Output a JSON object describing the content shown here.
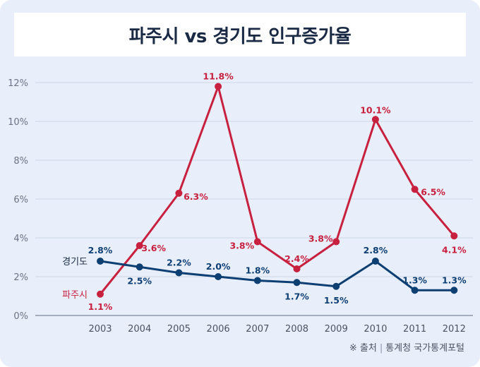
{
  "source_prefix": "※ 출처",
  "source_text": "통계청 국가통계포털",
  "colors": {
    "paju": "#c8203f",
    "gyeonggi": "#0e3f73",
    "grid": "#d0d8e6",
    "text": "#333a46"
  },
  "chart_data": {
    "type": "line",
    "title": "파주시 vs 경기도 인구증가율",
    "x": [
      "2003",
      "2004",
      "2005",
      "2006",
      "2007",
      "2008",
      "2009",
      "2010",
      "2011",
      "2012"
    ],
    "ylim": [
      0,
      12
    ],
    "yticks": [
      "0%",
      "2%",
      "4%",
      "6%",
      "8%",
      "10%",
      "12%"
    ],
    "grid": true,
    "series": [
      {
        "name": "파주시",
        "color": "#c8203f",
        "values": [
          1.1,
          3.6,
          6.3,
          11.8,
          3.8,
          2.4,
          3.8,
          10.1,
          6.5,
          4.1
        ],
        "labels": [
          "1.1%",
          "3.6%",
          "6.3%",
          "11.8%",
          "3.8%",
          "2.4%",
          "3.8%",
          "10.1%",
          "6.5%",
          "4.1%"
        ]
      },
      {
        "name": "경기도",
        "color": "#0e3f73",
        "values": [
          2.8,
          2.5,
          2.2,
          2.0,
          1.8,
          1.7,
          1.5,
          2.8,
          1.3,
          1.3
        ],
        "labels": [
          "2.8%",
          "2.5%",
          "2.2%",
          "2.0%",
          "1.8%",
          "1.7%",
          "1.5%",
          "2.8%",
          "1.3%",
          "1.3%"
        ]
      }
    ]
  }
}
